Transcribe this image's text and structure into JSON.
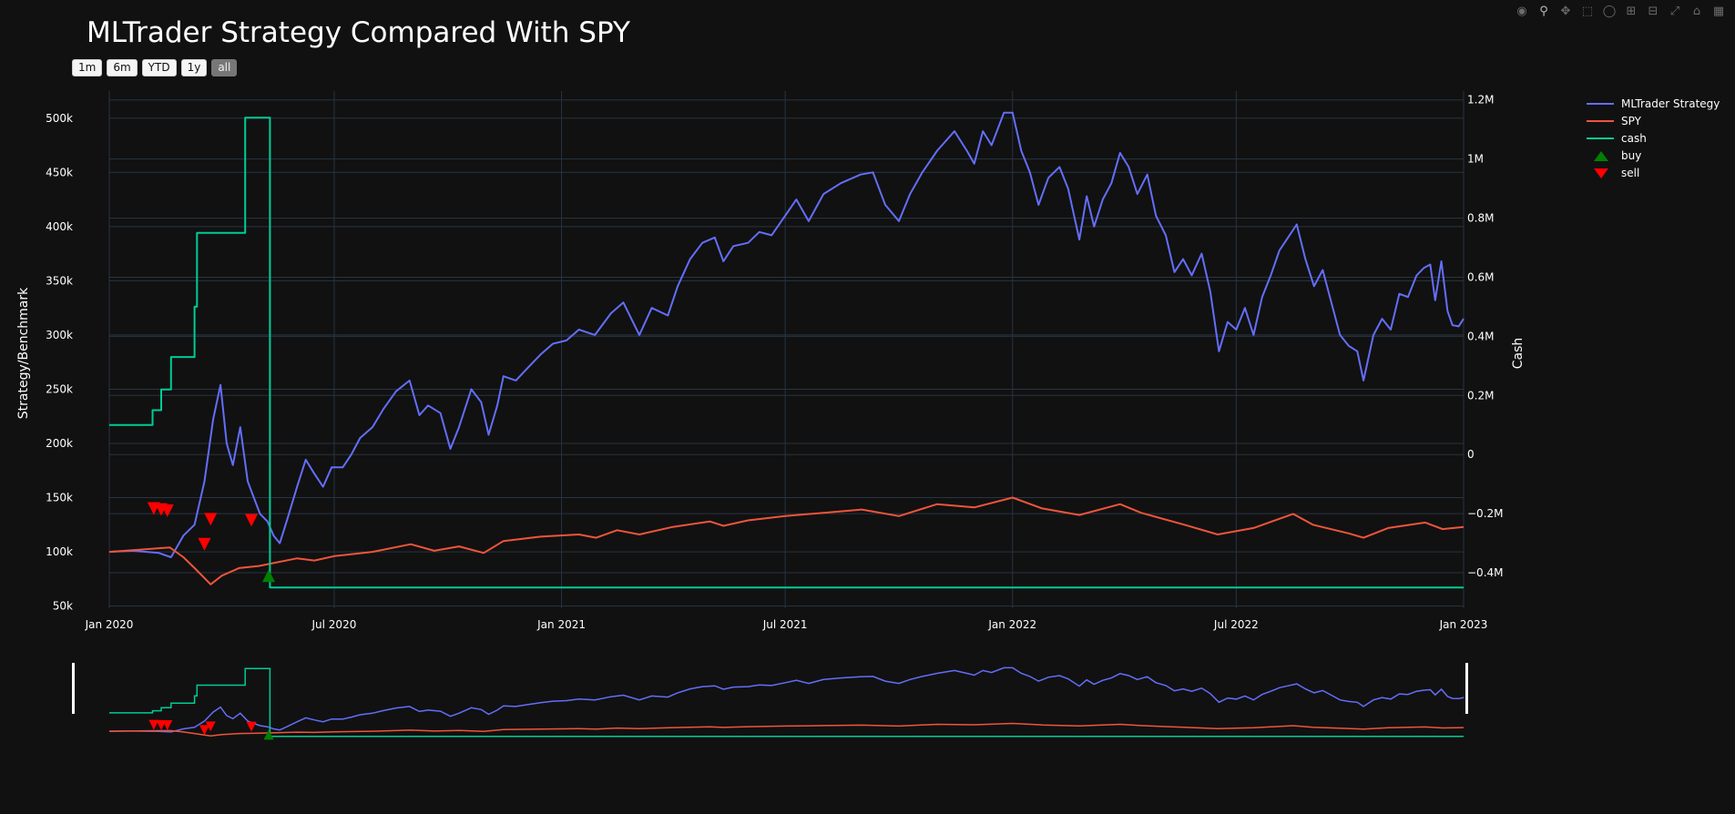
{
  "toolbar": {
    "range_buttons": [
      {
        "label": "1m",
        "active": false
      },
      {
        "label": "6m",
        "active": false
      },
      {
        "label": "YTD",
        "active": false
      },
      {
        "label": "1y",
        "active": false
      },
      {
        "label": "all",
        "active": true
      }
    ],
    "modebar_icons": [
      "camera-icon",
      "zoom-icon",
      "pan-icon",
      "box-select-icon",
      "lasso-icon",
      "zoom-in-icon",
      "zoom-out-icon",
      "autoscale-icon",
      "reset-axes-icon",
      "plotly-logo-icon"
    ]
  },
  "colors": {
    "background": "#111111",
    "grid": "#283442",
    "strategy": "#636efa",
    "spy": "#ef553b",
    "cash": "#00cc96",
    "buy": "#008000",
    "sell": "#ff0000"
  },
  "chart_data": {
    "type": "line",
    "title": "MLTrader Strategy Compared With SPY",
    "ylabel": "Strategy/Benchmark",
    "y2label": "Cash",
    "x_ticks": [
      "Jan 2020",
      "Jul 2020",
      "Jan 2021",
      "Jul 2021",
      "Jan 2022",
      "Jul 2022",
      "Jan 2023"
    ],
    "y_ticks": [
      "50k",
      "100k",
      "150k",
      "200k",
      "250k",
      "300k",
      "350k",
      "400k",
      "450k",
      "500k"
    ],
    "y2_ticks": [
      "−0.4M",
      "−0.2M",
      "0",
      "0.2M",
      "0.4M",
      "0.6M",
      "0.8M",
      "1M",
      "1.2M"
    ],
    "xlim": [
      "2020-01-01",
      "2023-01-01"
    ],
    "ylim": [
      48000,
      525000
    ],
    "y2lim": [
      -0.52,
      1.23
    ],
    "y2_unit": "M",
    "legend_position": "top-right",
    "grid": true,
    "series": [
      {
        "name": "MLTrader Strategy",
        "axis": "y",
        "color": "#636efa",
        "points": [
          [
            "2020-01-01",
            100000
          ],
          [
            "2020-01-20",
            101000
          ],
          [
            "2020-02-10",
            99000
          ],
          [
            "2020-02-20",
            95000
          ],
          [
            "2020-03-01",
            115000
          ],
          [
            "2020-03-10",
            125000
          ],
          [
            "2020-03-18",
            165000
          ],
          [
            "2020-03-25",
            222000
          ],
          [
            "2020-03-31",
            254000
          ],
          [
            "2020-04-05",
            200000
          ],
          [
            "2020-04-10",
            180000
          ],
          [
            "2020-04-16",
            215000
          ],
          [
            "2020-04-22",
            165000
          ],
          [
            "2020-04-27",
            150000
          ],
          [
            "2020-05-02",
            135000
          ],
          [
            "2020-05-08",
            128000
          ],
          [
            "2020-05-13",
            115000
          ],
          [
            "2020-05-18",
            108000
          ],
          [
            "2020-05-24",
            130000
          ],
          [
            "2020-06-01",
            160000
          ],
          [
            "2020-06-08",
            185000
          ],
          [
            "2020-06-15",
            172000
          ],
          [
            "2020-06-22",
            160000
          ],
          [
            "2020-06-29",
            178000
          ],
          [
            "2020-07-08",
            178000
          ],
          [
            "2020-07-15",
            190000
          ],
          [
            "2020-07-22",
            205000
          ],
          [
            "2020-08-01",
            215000
          ],
          [
            "2020-08-10",
            232000
          ],
          [
            "2020-08-20",
            248000
          ],
          [
            "2020-08-31",
            258000
          ],
          [
            "2020-09-08",
            226000
          ],
          [
            "2020-09-15",
            235000
          ],
          [
            "2020-09-25",
            228000
          ],
          [
            "2020-10-03",
            195000
          ],
          [
            "2020-10-10",
            215000
          ],
          [
            "2020-10-20",
            250000
          ],
          [
            "2020-10-28",
            238000
          ],
          [
            "2020-11-03",
            208000
          ],
          [
            "2020-11-10",
            235000
          ],
          [
            "2020-11-15",
            262000
          ],
          [
            "2020-11-25",
            258000
          ],
          [
            "2020-12-05",
            270000
          ],
          [
            "2020-12-15",
            282000
          ],
          [
            "2020-12-25",
            292000
          ],
          [
            "2021-01-05",
            295000
          ],
          [
            "2021-01-15",
            305000
          ],
          [
            "2021-01-28",
            300000
          ],
          [
            "2021-02-10",
            320000
          ],
          [
            "2021-02-20",
            330000
          ],
          [
            "2021-03-05",
            300000
          ],
          [
            "2021-03-15",
            325000
          ],
          [
            "2021-03-28",
            318000
          ],
          [
            "2021-04-05",
            345000
          ],
          [
            "2021-04-15",
            370000
          ],
          [
            "2021-04-25",
            385000
          ],
          [
            "2021-05-05",
            390000
          ],
          [
            "2021-05-12",
            368000
          ],
          [
            "2021-05-20",
            382000
          ],
          [
            "2021-06-01",
            385000
          ],
          [
            "2021-06-10",
            395000
          ],
          [
            "2021-06-20",
            392000
          ],
          [
            "2021-07-01",
            410000
          ],
          [
            "2021-07-10",
            425000
          ],
          [
            "2021-07-20",
            405000
          ],
          [
            "2021-08-01",
            430000
          ],
          [
            "2021-08-15",
            440000
          ],
          [
            "2021-08-31",
            448000
          ],
          [
            "2021-09-10",
            450000
          ],
          [
            "2021-09-20",
            420000
          ],
          [
            "2021-10-01",
            405000
          ],
          [
            "2021-10-10",
            430000
          ],
          [
            "2021-10-20",
            450000
          ],
          [
            "2021-11-01",
            470000
          ],
          [
            "2021-11-15",
            488000
          ],
          [
            "2021-11-25",
            470000
          ],
          [
            "2021-12-01",
            458000
          ],
          [
            "2021-12-08",
            488000
          ],
          [
            "2021-12-15",
            475000
          ],
          [
            "2021-12-25",
            505000
          ],
          [
            "2022-01-01",
            505000
          ],
          [
            "2022-01-08",
            470000
          ],
          [
            "2022-01-15",
            450000
          ],
          [
            "2022-01-22",
            420000
          ],
          [
            "2022-01-30",
            445000
          ],
          [
            "2022-02-08",
            455000
          ],
          [
            "2022-02-15",
            435000
          ],
          [
            "2022-02-24",
            388000
          ],
          [
            "2022-03-02",
            428000
          ],
          [
            "2022-03-08",
            400000
          ],
          [
            "2022-03-15",
            425000
          ],
          [
            "2022-03-22",
            440000
          ],
          [
            "2022-03-29",
            468000
          ],
          [
            "2022-04-05",
            455000
          ],
          [
            "2022-04-12",
            430000
          ],
          [
            "2022-04-20",
            448000
          ],
          [
            "2022-04-27",
            410000
          ],
          [
            "2022-05-05",
            392000
          ],
          [
            "2022-05-12",
            358000
          ],
          [
            "2022-05-19",
            370000
          ],
          [
            "2022-05-26",
            355000
          ],
          [
            "2022-06-03",
            375000
          ],
          [
            "2022-06-10",
            340000
          ],
          [
            "2022-06-17",
            285000
          ],
          [
            "2022-06-24",
            312000
          ],
          [
            "2022-07-01",
            305000
          ],
          [
            "2022-07-08",
            325000
          ],
          [
            "2022-07-15",
            300000
          ],
          [
            "2022-07-22",
            335000
          ],
          [
            "2022-07-29",
            355000
          ],
          [
            "2022-08-05",
            378000
          ],
          [
            "2022-08-12",
            390000
          ],
          [
            "2022-08-19",
            402000
          ],
          [
            "2022-08-26",
            370000
          ],
          [
            "2022-09-02",
            345000
          ],
          [
            "2022-09-09",
            360000
          ],
          [
            "2022-09-16",
            330000
          ],
          [
            "2022-09-23",
            300000
          ],
          [
            "2022-09-30",
            290000
          ],
          [
            "2022-10-07",
            285000
          ],
          [
            "2022-10-12",
            258000
          ],
          [
            "2022-10-20",
            300000
          ],
          [
            "2022-10-27",
            315000
          ],
          [
            "2022-11-03",
            305000
          ],
          [
            "2022-11-10",
            338000
          ],
          [
            "2022-11-17",
            335000
          ],
          [
            "2022-11-24",
            355000
          ],
          [
            "2022-11-30",
            362000
          ],
          [
            "2022-12-05",
            365000
          ],
          [
            "2022-12-09",
            332000
          ],
          [
            "2022-12-14",
            368000
          ],
          [
            "2022-12-19",
            322000
          ],
          [
            "2022-12-23",
            309000
          ],
          [
            "2022-12-28",
            308000
          ],
          [
            "2023-01-01",
            315000
          ]
        ]
      },
      {
        "name": "SPY",
        "axis": "y",
        "color": "#ef553b",
        "points": [
          [
            "2020-01-01",
            100000
          ],
          [
            "2020-02-19",
            104000
          ],
          [
            "2020-03-01",
            95000
          ],
          [
            "2020-03-10",
            85000
          ],
          [
            "2020-03-23",
            70000
          ],
          [
            "2020-04-01",
            78000
          ],
          [
            "2020-04-15",
            85000
          ],
          [
            "2020-05-01",
            87000
          ],
          [
            "2020-06-01",
            94000
          ],
          [
            "2020-06-15",
            92000
          ],
          [
            "2020-07-01",
            96000
          ],
          [
            "2020-08-01",
            100000
          ],
          [
            "2020-09-01",
            107000
          ],
          [
            "2020-09-20",
            101000
          ],
          [
            "2020-10-10",
            105000
          ],
          [
            "2020-10-30",
            99000
          ],
          [
            "2020-11-15",
            110000
          ],
          [
            "2020-12-15",
            114000
          ],
          [
            "2021-01-15",
            116000
          ],
          [
            "2021-01-29",
            113000
          ],
          [
            "2021-02-15",
            120000
          ],
          [
            "2021-03-05",
            116000
          ],
          [
            "2021-04-01",
            123000
          ],
          [
            "2021-05-01",
            128000
          ],
          [
            "2021-05-12",
            124000
          ],
          [
            "2021-06-01",
            129000
          ],
          [
            "2021-07-01",
            133000
          ],
          [
            "2021-08-01",
            136000
          ],
          [
            "2021-09-01",
            139000
          ],
          [
            "2021-10-01",
            133000
          ],
          [
            "2021-11-01",
            144000
          ],
          [
            "2021-12-01",
            141000
          ],
          [
            "2022-01-01",
            150000
          ],
          [
            "2022-01-25",
            140000
          ],
          [
            "2022-02-24",
            134000
          ],
          [
            "2022-03-29",
            144000
          ],
          [
            "2022-04-15",
            136000
          ],
          [
            "2022-05-20",
            125000
          ],
          [
            "2022-06-16",
            116000
          ],
          [
            "2022-07-15",
            122000
          ],
          [
            "2022-08-16",
            135000
          ],
          [
            "2022-09-01",
            125000
          ],
          [
            "2022-09-30",
            117000
          ],
          [
            "2022-10-12",
            113000
          ],
          [
            "2022-11-01",
            122000
          ],
          [
            "2022-12-01",
            127000
          ],
          [
            "2022-12-15",
            121000
          ],
          [
            "2023-01-01",
            123000
          ]
        ]
      },
      {
        "name": "cash",
        "axis": "y2",
        "color": "#00cc96",
        "shape": "hv",
        "points": [
          [
            "2020-01-01",
            0.1
          ],
          [
            "2020-02-05",
            0.15
          ],
          [
            "2020-02-12",
            0.22
          ],
          [
            "2020-02-20",
            0.33
          ],
          [
            "2020-03-10",
            0.5
          ],
          [
            "2020-03-12",
            0.75
          ],
          [
            "2020-04-20",
            1.14
          ],
          [
            "2020-05-10",
            -0.45
          ],
          [
            "2023-01-01",
            -0.45
          ]
        ]
      },
      {
        "name": "buy",
        "axis": "y",
        "color": "#008000",
        "mode": "markers",
        "marker": "triangle-up",
        "points": [
          [
            "2020-05-09",
            78000
          ]
        ]
      },
      {
        "name": "sell",
        "axis": "y",
        "color": "#ff0000",
        "mode": "markers",
        "marker": "triangle-down",
        "points": [
          [
            "2020-02-06",
            140000
          ],
          [
            "2020-02-12",
            139000
          ],
          [
            "2020-02-17",
            138000
          ],
          [
            "2020-03-18",
            107000
          ],
          [
            "2020-03-23",
            130000
          ],
          [
            "2020-04-25",
            129000
          ]
        ]
      }
    ]
  }
}
